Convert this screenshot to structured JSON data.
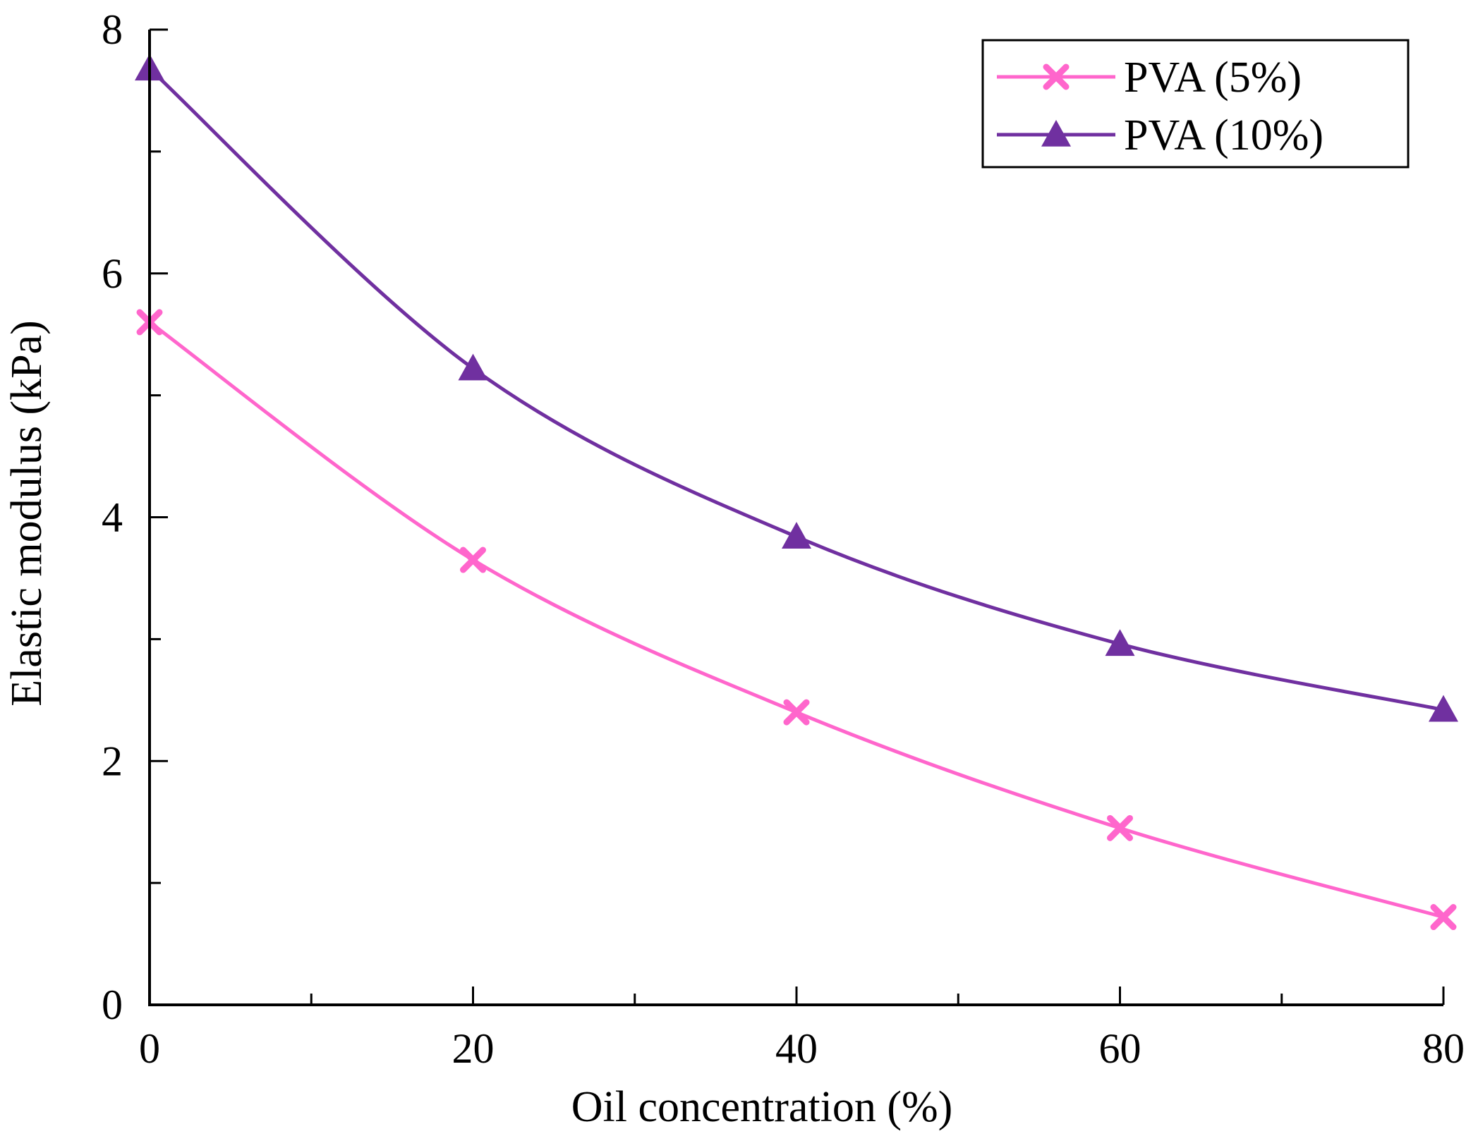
{
  "chart_data": {
    "type": "line",
    "title": "",
    "xlabel": "Oil concentration  (%)",
    "ylabel": "Elastic modulus (kPa)",
    "xlim": [
      0,
      80
    ],
    "ylim": [
      0,
      8
    ],
    "x_ticks": [
      0,
      20,
      40,
      60,
      80
    ],
    "x_tick_labels": [
      "0",
      "20",
      "40",
      "60",
      "80"
    ],
    "y_ticks": [
      0,
      2,
      4,
      6,
      8
    ],
    "y_tick_labels": [
      "0",
      "2",
      "4",
      "6",
      "8"
    ],
    "grid": false,
    "legend_position": "top-right",
    "series": [
      {
        "name": "PVA (5%)",
        "color": "#ff66cc",
        "marker": "x",
        "x": [
          0,
          20,
          40,
          60,
          80
        ],
        "y": [
          5.6,
          3.65,
          2.4,
          1.45,
          0.72
        ]
      },
      {
        "name": "PVA (10%)",
        "color": "#7030a0",
        "marker": "triangle",
        "x": [
          0,
          20,
          40,
          60,
          80
        ],
        "y": [
          7.68,
          5.22,
          3.84,
          2.96,
          2.42
        ]
      }
    ]
  }
}
